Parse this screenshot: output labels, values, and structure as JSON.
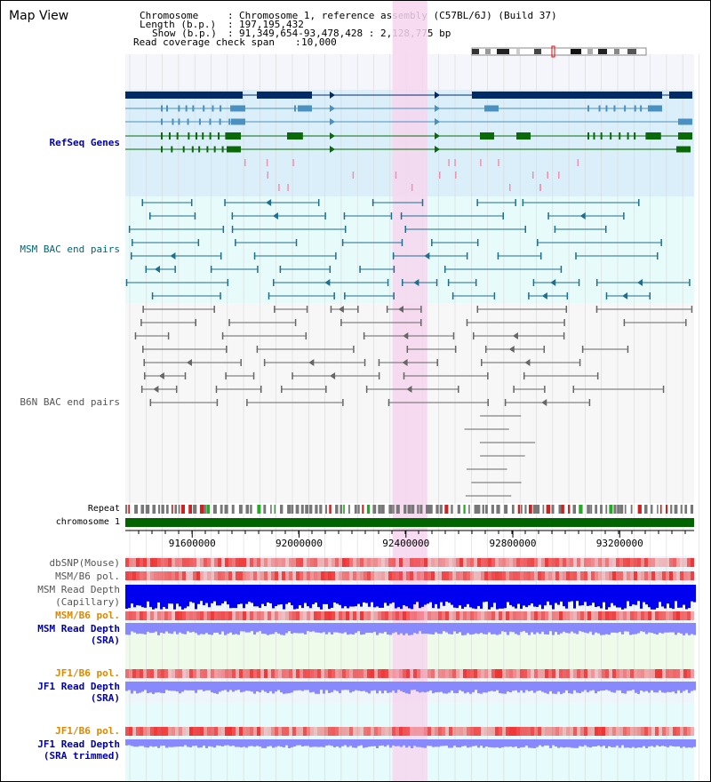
{
  "app": {
    "title": "Map View"
  },
  "header": {
    "chromosome_label": "Chromosome",
    "chromosome_value": "Chromosome 1, reference assembly (C57BL/6J) (Build 37)",
    "length_label": "Length (b.p.)",
    "length_value": "197,195,432",
    "show_label": "Show (b.p.)",
    "show_value": "91,349,654-93,478,428 : 2,128,775 bp",
    "coverage_label": "Read coverage check span",
    "coverage_value": "10,000"
  },
  "tracks": {
    "refseq": "RefSeq Genes",
    "msm_bac": "MSM BAC end pairs",
    "b6n_bac": "B6N BAC end pairs",
    "repeat": "Repeat",
    "chromosome": "chromosome 1",
    "dbsnp": "dbSNP(Mouse)",
    "msm_b6_pol": "MSM/B6 pol.",
    "msm_read_depth": "MSM Read Depth",
    "capillary": "(Capillary)",
    "msm_b6_pol_2": "MSM/B6 pol.",
    "msm_read_depth_2": "MSM Read Depth",
    "sra": "(SRA)",
    "jf1_b6_pol": "JF1/B6 pol.",
    "jf1_read_depth": "JF1 Read Depth",
    "sra_2": "(SRA)",
    "jf1_b6_pol_2": "JF1/B6 pol.",
    "jf1_read_depth_2": "JF1 Read Depth",
    "sra_trimmed": "(SRA trimmed)"
  },
  "axis": {
    "ticks": [
      "91600000",
      "92000000",
      "92400000",
      "92800000",
      "93200000"
    ],
    "tick_values": [
      91600000,
      92000000,
      92400000,
      92800000,
      93200000
    ],
    "range": [
      91349654,
      93478428
    ]
  },
  "highlight": {
    "start": 92349654,
    "end": 92480000
  },
  "colors": {
    "refseq_dark": "#002b66",
    "refseq_mid": "#4a90c0",
    "refseq_green": "#0a6a0a",
    "msm_bac": "#1e6e8e",
    "b6n_bac": "#666666",
    "highlight": "#f6d6ef",
    "chromosome": "#006400",
    "snp": "#ee3333",
    "depth_dark": "#0000ee",
    "depth_light": "#8888ff"
  }
}
